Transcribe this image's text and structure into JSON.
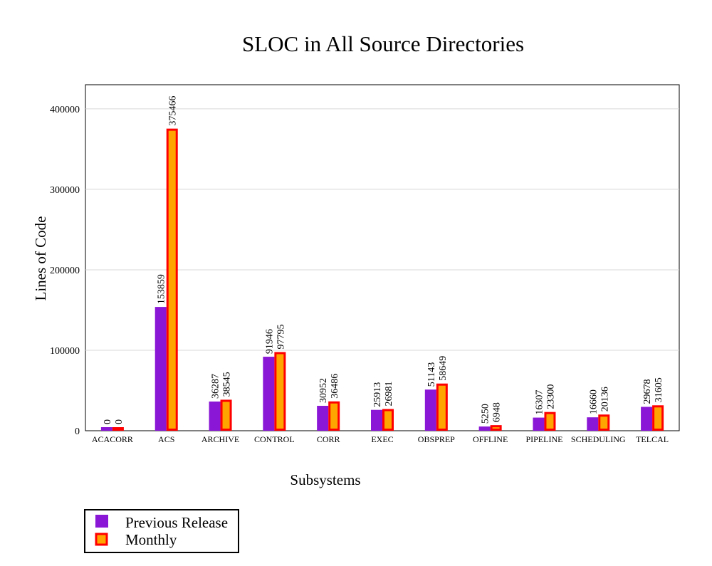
{
  "chart_data": {
    "type": "bar",
    "title": "SLOC in All Source Directories",
    "xlabel": "Subsystems",
    "ylabel": "Lines of Code",
    "ylim": [
      0,
      430000
    ],
    "yticks": [
      0,
      100000,
      200000,
      300000,
      400000
    ],
    "grid": true,
    "legend_position": "bottom-left",
    "categories": [
      "ACACORR",
      "ACS",
      "ARCHIVE",
      "CONTROL",
      "CORR",
      "EXEC",
      "OBSPREP",
      "OFFLINE",
      "PIPELINE",
      "SCHEDULING",
      "TELCAL"
    ],
    "series": [
      {
        "name": "Previous Release",
        "color": "#8a17d6",
        "values": [
          0,
          153859,
          36287,
          91946,
          30952,
          25913,
          51143,
          5250,
          16307,
          16660,
          29678
        ]
      },
      {
        "name": "Monthly",
        "color": "#ffa500",
        "border_color": "#ff0000",
        "values": [
          0,
          375466,
          38545,
          97795,
          36486,
          26981,
          58649,
          6948,
          23300,
          20136,
          31605
        ]
      }
    ]
  }
}
